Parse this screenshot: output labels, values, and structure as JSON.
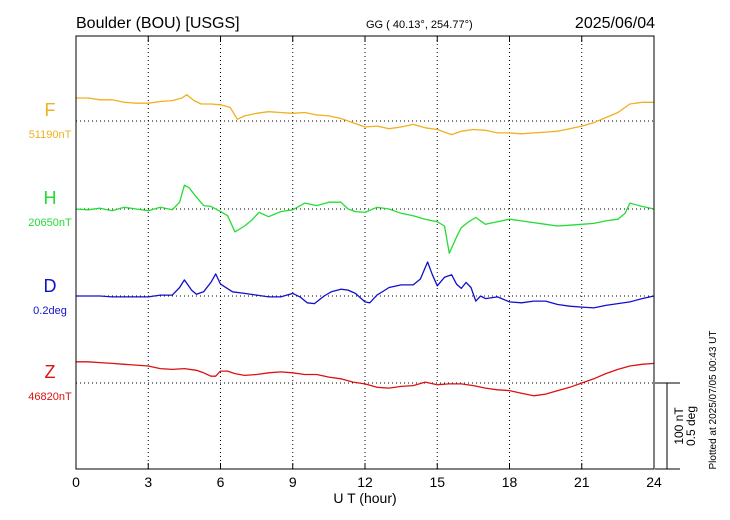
{
  "header": {
    "title": "Boulder (BOU)  [USGS]",
    "coords": "GG ( 40.13°, 254.77°)",
    "date": "2025/06/04"
  },
  "side_note": "Plotted at 2025/07/05 00:43 UT",
  "scale": {
    "nt": "100 nT",
    "deg": "0.5 deg"
  },
  "chart_data": {
    "type": "line",
    "xlabel": "U T (hour)",
    "xlim": [
      0,
      24
    ],
    "xticks": [
      0,
      3,
      6,
      9,
      12,
      15,
      18,
      21,
      24
    ],
    "grid": true,
    "series": [
      {
        "name": "F",
        "baseline": "51190nT",
        "color": "#f0b020",
        "x": [
          0,
          0.5,
          1,
          1.5,
          2,
          2.5,
          3,
          3.5,
          4,
          4.4,
          4.6,
          4.9,
          5.2,
          5.6,
          6,
          6.4,
          6.7,
          7,
          7.5,
          8,
          8.5,
          9,
          9.5,
          10,
          10.5,
          11,
          11.5,
          12,
          12.5,
          13,
          13.5,
          14,
          14.5,
          15,
          15.3,
          15.6,
          16,
          16.5,
          17,
          17.5,
          18,
          18.5,
          19,
          19.5,
          20,
          20.5,
          21,
          21.5,
          22,
          22.5,
          23,
          23.5,
          24
        ],
        "y": [
          27,
          27,
          25,
          25,
          22,
          21,
          21,
          23,
          24,
          27,
          31,
          24,
          20,
          20,
          19,
          16,
          2,
          6,
          9,
          11,
          10,
          9,
          10,
          7,
          6,
          3,
          -2,
          -7,
          -6,
          -9,
          -7,
          -4,
          -8,
          -10,
          -13,
          -16,
          -12,
          -10,
          -11,
          -14,
          -14,
          -15,
          -14,
          -13,
          -12,
          -9,
          -6,
          -2,
          4,
          10,
          20,
          22,
          22
        ]
      },
      {
        "name": "H",
        "baseline": "20650nT",
        "color": "#22dd33",
        "x": [
          0,
          0.5,
          1,
          1.5,
          2,
          2.5,
          3,
          3.5,
          4,
          4.3,
          4.5,
          4.7,
          5,
          5.3,
          5.6,
          6,
          6.3,
          6.6,
          7,
          7.3,
          7.6,
          8,
          8.5,
          9,
          9.5,
          10,
          10.5,
          11,
          11.3,
          11.6,
          12,
          12.5,
          13,
          13.5,
          14,
          14.5,
          15,
          15.3,
          15.5,
          15.8,
          16,
          16.3,
          16.6,
          17,
          17.5,
          18,
          18.5,
          19,
          19.5,
          20,
          20.5,
          21,
          21.5,
          22,
          22.5,
          22.8,
          23,
          23.5,
          24
        ],
        "y": [
          0,
          -1,
          1,
          -2,
          2,
          0,
          -2,
          2,
          -1,
          8,
          28,
          25,
          14,
          4,
          3,
          -3,
          -8,
          -27,
          -20,
          -13,
          -4,
          -9,
          -3,
          -1,
          7,
          4,
          8,
          8,
          0,
          -3,
          -4,
          2,
          0,
          -5,
          -8,
          -12,
          -15,
          -20,
          -52,
          -33,
          -22,
          -15,
          -10,
          -18,
          -15,
          -12,
          -14,
          -16,
          -18,
          -20,
          -19,
          -18,
          -17,
          -14,
          -12,
          -5,
          7,
          3,
          0
        ]
      },
      {
        "name": "D",
        "baseline": "0.2deg",
        "color": "#1111cc",
        "x": [
          0,
          0.5,
          1,
          1.5,
          2,
          2.5,
          3,
          3.5,
          4,
          4.3,
          4.5,
          4.8,
          5,
          5.3,
          5.6,
          5.8,
          6,
          6.5,
          7,
          7.5,
          8,
          8.5,
          9,
          9.3,
          9.6,
          9.9,
          10.3,
          10.6,
          11,
          11.3,
          11.6,
          12,
          12.2,
          12.5,
          13,
          13.5,
          14,
          14.3,
          14.6,
          14.8,
          15,
          15.3,
          15.6,
          15.8,
          16,
          16.2,
          16.4,
          16.6,
          16.8,
          17,
          17.5,
          18,
          18.5,
          19,
          19.5,
          20,
          20.5,
          21,
          21.5,
          22,
          22.5,
          23,
          23.5,
          24
        ],
        "y": [
          0,
          0,
          0,
          -1,
          -1,
          -1,
          -1,
          1,
          1,
          10,
          19,
          7,
          2,
          5,
          16,
          26,
          14,
          5,
          3,
          1,
          -1,
          -1,
          3,
          -1,
          -8,
          -9,
          0,
          5,
          8,
          7,
          3,
          -7,
          -8,
          1,
          10,
          13,
          13,
          20,
          40,
          25,
          12,
          22,
          25,
          14,
          9,
          16,
          10,
          -6,
          0,
          -3,
          -1,
          -7,
          -8,
          -6,
          -6,
          -10,
          -12,
          -13,
          -14,
          -11,
          -9,
          -7,
          -3,
          0
        ]
      },
      {
        "name": "Z",
        "baseline": "46820nT",
        "color": "#dd1111",
        "x": [
          0,
          0.5,
          1,
          1.5,
          2,
          2.5,
          3,
          3.5,
          4,
          4.5,
          5,
          5.3,
          5.6,
          5.8,
          6,
          6.3,
          6.6,
          7,
          7.5,
          8,
          8.5,
          9,
          9.5,
          10,
          10.5,
          11,
          11.5,
          12,
          12.5,
          13,
          13.5,
          14,
          14.5,
          15,
          15.5,
          16,
          16.5,
          17,
          17.5,
          18,
          18.5,
          19,
          19.5,
          20,
          20.5,
          21,
          21.5,
          22,
          22.5,
          23,
          23.5,
          24
        ],
        "y": [
          25,
          25,
          24,
          23,
          22,
          21,
          20,
          17,
          16,
          17,
          15,
          12,
          8,
          8,
          14,
          14,
          11,
          9,
          10,
          12,
          13,
          12,
          10,
          10,
          7,
          5,
          1,
          -1,
          -5,
          -6,
          -4,
          -3,
          1,
          -2,
          -1,
          -1,
          -3,
          -6,
          -8,
          -9,
          -12,
          -15,
          -13,
          -9,
          -5,
          0,
          5,
          11,
          16,
          20,
          22,
          23
        ]
      }
    ]
  }
}
